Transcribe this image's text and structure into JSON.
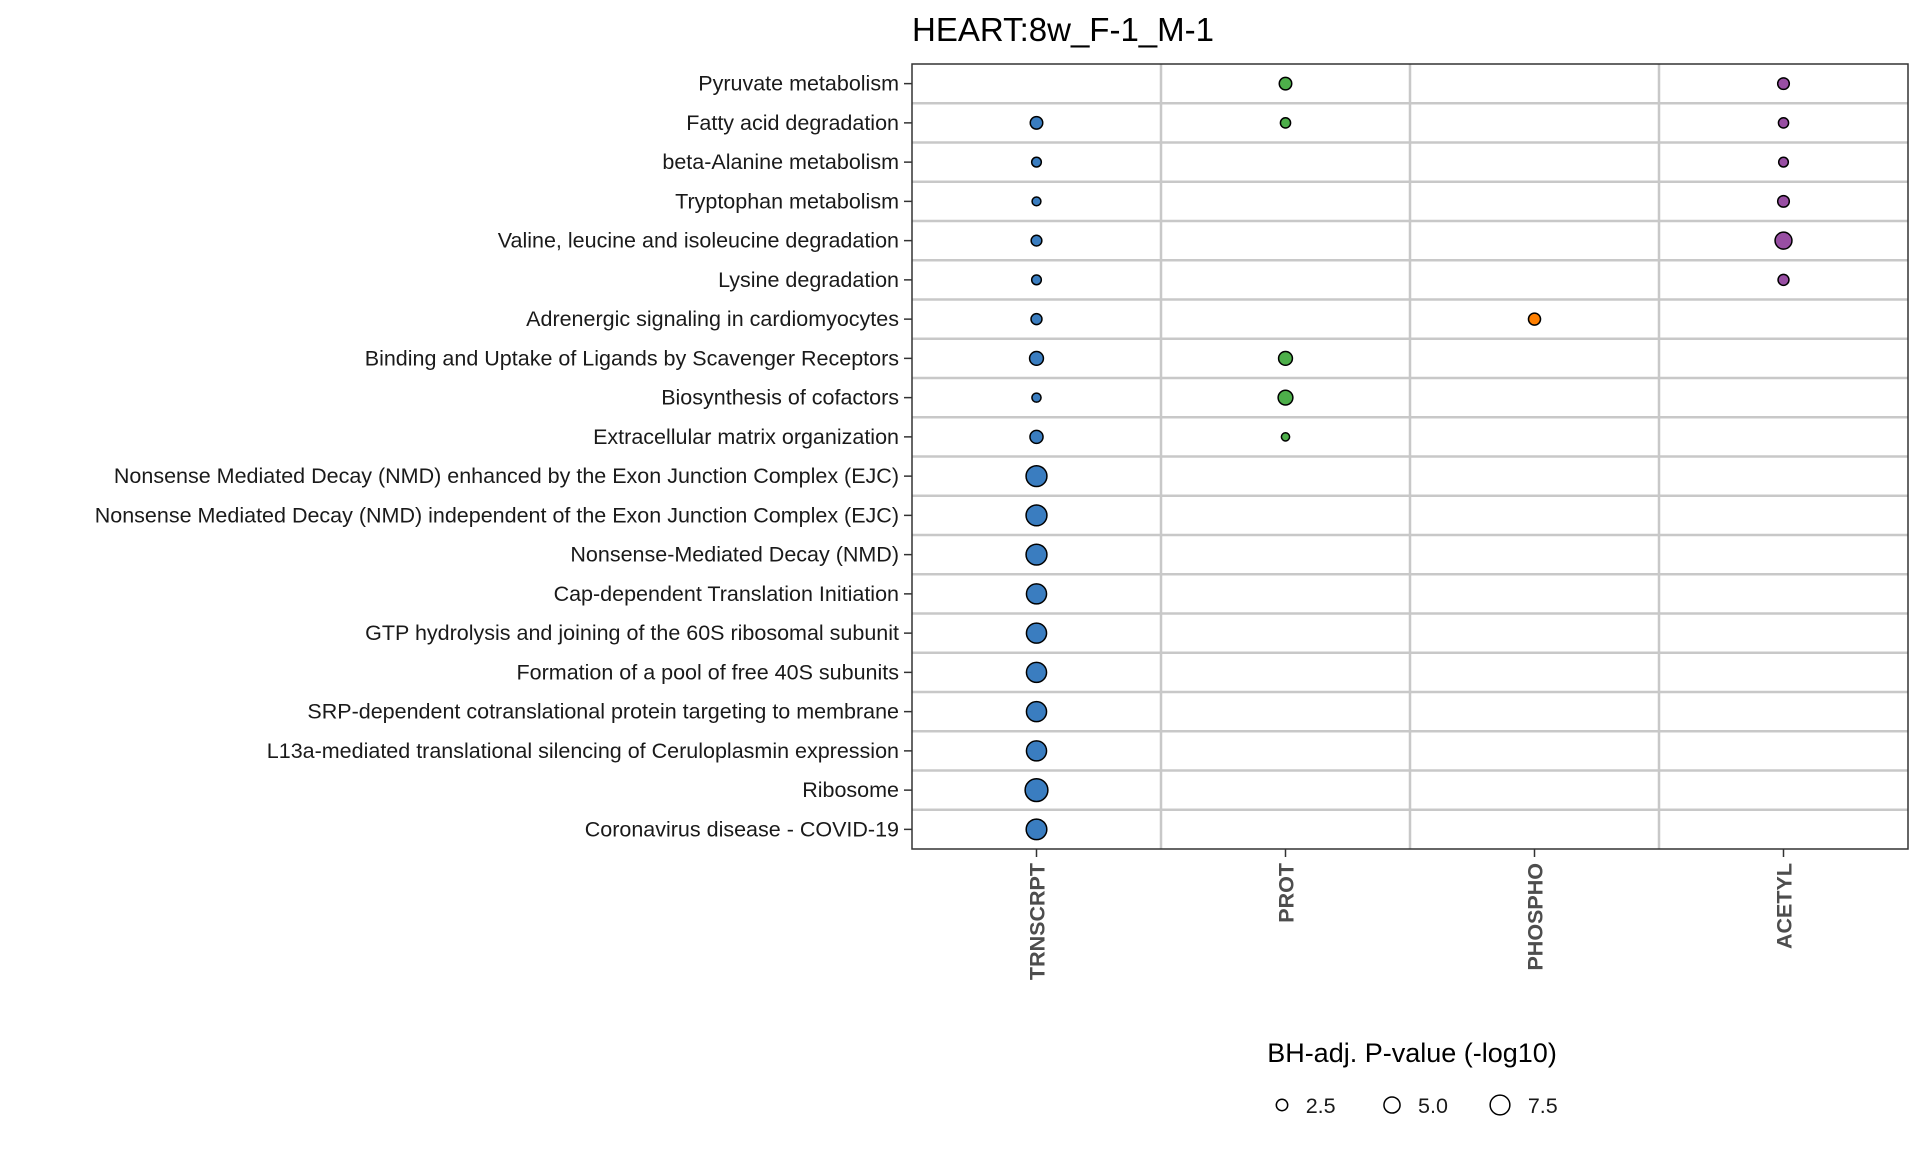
{
  "chart_data": {
    "type": "scatter",
    "title": "HEART:8w_F-1_M-1",
    "x_categories": [
      "TRNSCRPT",
      "PROT",
      "PHOSPHO",
      "ACETYL"
    ],
    "y_categories": [
      "Pyruvate metabolism",
      "Fatty acid degradation",
      "beta-Alanine metabolism",
      "Tryptophan metabolism",
      "Valine, leucine and isoleucine degradation",
      "Lysine degradation",
      "Adrenergic signaling in cardiomyocytes",
      "Binding and Uptake of Ligands by Scavenger Receptors",
      "Biosynthesis of cofactors",
      "Extracellular matrix organization",
      "Nonsense Mediated Decay (NMD) enhanced by the Exon Junction Complex (EJC)",
      "Nonsense Mediated Decay (NMD) independent of the Exon Junction Complex (EJC)",
      "Nonsense-Mediated Decay (NMD)",
      "Cap-dependent Translation Initiation",
      "GTP hydrolysis and joining of the 60S ribosomal subunit",
      "Formation of a pool of free 40S subunits",
      "SRP-dependent cotranslational protein targeting to membrane",
      "L13a-mediated translational silencing of Ceruloplasmin expression",
      "Ribosome",
      "Coronavirus disease - COVID-19"
    ],
    "colors": {
      "TRNSCRPT": "#3a7dc0",
      "PROT": "#4daf4a",
      "PHOSPHO": "#ff7f00",
      "ACETYL": "#984ea3"
    },
    "points": [
      {
        "y": "Pyruvate metabolism",
        "x": "PROT",
        "value": 3.0
      },
      {
        "y": "Pyruvate metabolism",
        "x": "ACETYL",
        "value": 2.6
      },
      {
        "y": "Fatty acid degradation",
        "x": "TRNSCRPT",
        "value": 3.0
      },
      {
        "y": "Fatty acid degradation",
        "x": "PROT",
        "value": 2.0
      },
      {
        "y": "Fatty acid degradation",
        "x": "ACETYL",
        "value": 2.0
      },
      {
        "y": "beta-Alanine metabolism",
        "x": "TRNSCRPT",
        "value": 1.8
      },
      {
        "y": "beta-Alanine metabolism",
        "x": "ACETYL",
        "value": 1.8
      },
      {
        "y": "Tryptophan metabolism",
        "x": "TRNSCRPT",
        "value": 1.5
      },
      {
        "y": "Tryptophan metabolism",
        "x": "ACETYL",
        "value": 2.6
      },
      {
        "y": "Valine, leucine and isoleucine degradation",
        "x": "TRNSCRPT",
        "value": 2.2
      },
      {
        "y": "Valine, leucine and isoleucine degradation",
        "x": "ACETYL",
        "value": 5.5
      },
      {
        "y": "Lysine degradation",
        "x": "TRNSCRPT",
        "value": 1.8
      },
      {
        "y": "Lysine degradation",
        "x": "ACETYL",
        "value": 2.3
      },
      {
        "y": "Adrenergic signaling in cardiomyocytes",
        "x": "TRNSCRPT",
        "value": 2.3
      },
      {
        "y": "Adrenergic signaling in cardiomyocytes",
        "x": "PHOSPHO",
        "value": 2.8
      },
      {
        "y": "Binding and Uptake of Ligands by Scavenger Receptors",
        "x": "TRNSCRPT",
        "value": 3.7
      },
      {
        "y": "Binding and Uptake of Ligands by Scavenger Receptors",
        "x": "PROT",
        "value": 3.7
      },
      {
        "y": "Biosynthesis of cofactors",
        "x": "TRNSCRPT",
        "value": 1.6
      },
      {
        "y": "Biosynthesis of cofactors",
        "x": "PROT",
        "value": 4.2
      },
      {
        "y": "Extracellular matrix organization",
        "x": "TRNSCRPT",
        "value": 3.3
      },
      {
        "y": "Extracellular matrix organization",
        "x": "PROT",
        "value": 1.3
      },
      {
        "y": "Nonsense Mediated Decay (NMD) enhanced by the Exon Junction Complex (EJC)",
        "x": "TRNSCRPT",
        "value": 8.4
      },
      {
        "y": "Nonsense Mediated Decay (NMD) independent of the Exon Junction Complex (EJC)",
        "x": "TRNSCRPT",
        "value": 8.4
      },
      {
        "y": "Nonsense-Mediated Decay (NMD)",
        "x": "TRNSCRPT",
        "value": 8.4
      },
      {
        "y": "Cap-dependent Translation Initiation",
        "x": "TRNSCRPT",
        "value": 7.8
      },
      {
        "y": "GTP hydrolysis and joining of the 60S ribosomal subunit",
        "x": "TRNSCRPT",
        "value": 7.8
      },
      {
        "y": "Formation of a pool of free 40S subunits",
        "x": "TRNSCRPT",
        "value": 7.8
      },
      {
        "y": "SRP-dependent cotranslational protein targeting to membrane",
        "x": "TRNSCRPT",
        "value": 7.8
      },
      {
        "y": "L13a-mediated translational silencing of Ceruloplasmin expression",
        "x": "TRNSCRPT",
        "value": 7.8
      },
      {
        "y": "Ribosome",
        "x": "TRNSCRPT",
        "value": 10.0
      },
      {
        "y": "Coronavirus disease - COVID-19",
        "x": "TRNSCRPT",
        "value": 8.2
      }
    ],
    "legend": {
      "title": "BH-adj. P-value (-log10)",
      "placement": "bottom",
      "entries": [
        {
          "label": "2.5",
          "value": 2.5
        },
        {
          "label": "5.0",
          "value": 5.0
        },
        {
          "label": "7.5",
          "value": 7.5
        }
      ]
    },
    "grid": true
  }
}
